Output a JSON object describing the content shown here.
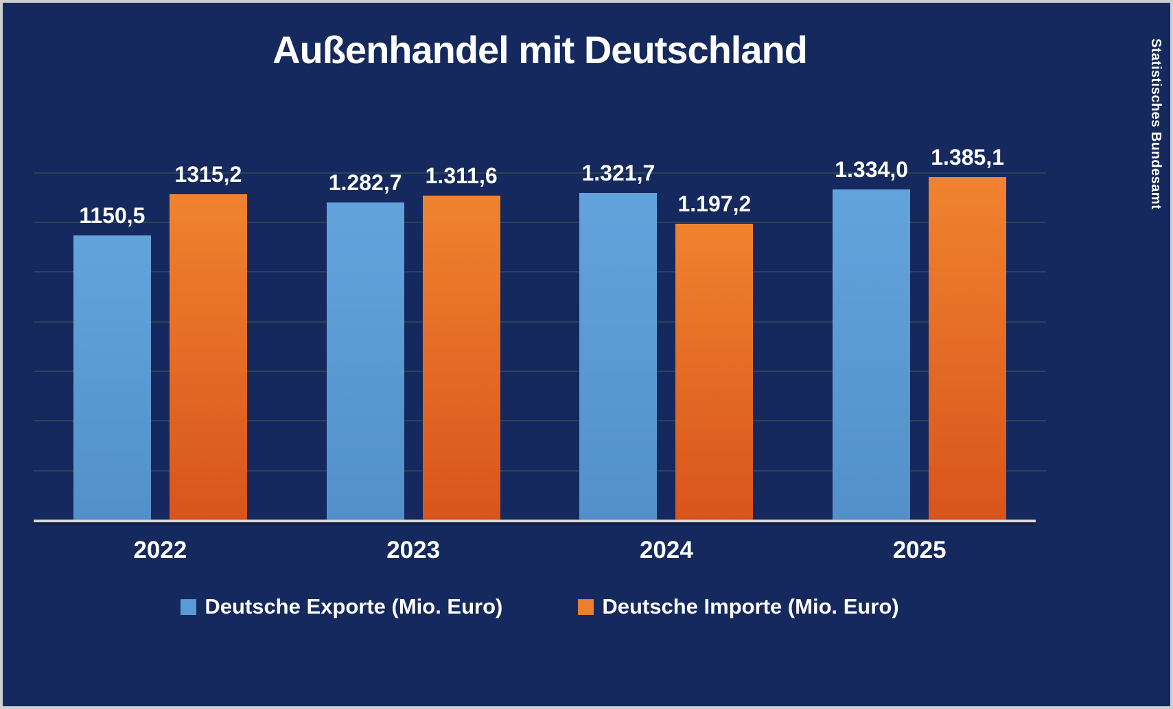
{
  "source_label": "Statistisches Bundesamt",
  "chart_data": {
    "type": "bar",
    "title": "Außenhandel mit Deutschland",
    "xlabel": "",
    "ylabel": "",
    "categories": [
      "2022",
      "2023",
      "2024",
      "2025"
    ],
    "series": [
      {
        "name": "Deutsche Exporte (Mio. Euro)",
        "color": "#5B9BD5",
        "values": [
          1150.5,
          1282.7,
          1321.7,
          1334.0
        ],
        "labels": [
          "1150,5",
          "1.282,7",
          "1.321,7",
          "1.334,0"
        ]
      },
      {
        "name": "Deutsche Importe (Mio. Euro)",
        "color": "#ED7D31",
        "color_bottom": "#D9541C",
        "values": [
          1315.2,
          1311.6,
          1197.2,
          1385.1
        ],
        "labels": [
          "1315,2",
          "1.311,6",
          "1.197,2",
          "1.385,1"
        ]
      }
    ],
    "ylim": [
      0,
      1700
    ],
    "gridline_step": 200,
    "grid": true,
    "y_tick_labels_shown": false,
    "legend_position": "bottom",
    "background_color": "#15295E"
  }
}
